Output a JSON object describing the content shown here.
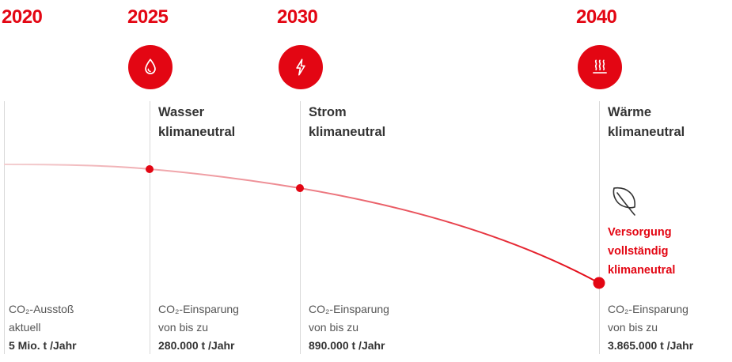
{
  "colors": {
    "accent": "#e30613",
    "grid": "#d9d9d9",
    "text": "#333333",
    "muted": "#555555"
  },
  "years": [
    "2020",
    "2025",
    "2030",
    "2040"
  ],
  "milestones": [
    {
      "icon": "water-drop-icon",
      "line1": "Wasser",
      "line2": "klimaneutral"
    },
    {
      "icon": "lightning-icon",
      "line1": "Strom",
      "line2": "klimaneutral"
    },
    {
      "icon": "heat-icon",
      "line1": "Wärme",
      "line2": "klimaneutral"
    }
  ],
  "highlight": {
    "icon": "leaf-icon",
    "line1": "Versorgung",
    "line2": "vollständig",
    "line3": "klimaneutral"
  },
  "stats": [
    {
      "line1": "CO₂-Ausstoß",
      "line2": "aktuell",
      "value": "5 Mio. t /Jahr"
    },
    {
      "line1": "CO₂-Einsparung",
      "line2": "von bis zu",
      "value": "280.000 t /Jahr"
    },
    {
      "line1": "CO₂-Einsparung",
      "line2": "von bis zu",
      "value": "890.000 t /Jahr"
    },
    {
      "line1": "CO₂-Einsparung",
      "line2": "von bis zu",
      "value": "3.865.000 t /Jahr"
    }
  ]
}
